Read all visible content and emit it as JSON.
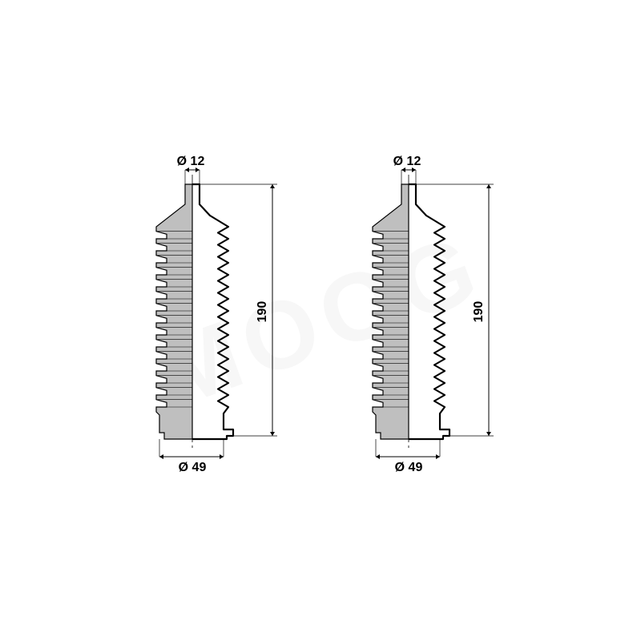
{
  "watermark_text": "MOOG",
  "watermark_color": "rgba(200,200,200,0.12)",
  "units": [
    {
      "top_diameter_label": "Ø 12",
      "bottom_diameter_label": "Ø 49",
      "height_label": "190",
      "stroke_color": "#000000",
      "stroke_width": 1.2,
      "bellows": {
        "top_diameter": 12,
        "bottom_diameter": 49,
        "overall_height": 190,
        "ridge_count": 15,
        "left_fill_color": "#bfbfbf",
        "right_fill_color": "#ffffff"
      }
    },
    {
      "top_diameter_label": "Ø 12",
      "bottom_diameter_label": "Ø 49",
      "height_label": "190",
      "stroke_color": "#000000",
      "stroke_width": 1.2,
      "bellows": {
        "top_diameter": 12,
        "bottom_diameter": 49,
        "overall_height": 190,
        "ridge_count": 15,
        "left_fill_color": "#bfbfbf",
        "right_fill_color": "#ffffff"
      }
    }
  ]
}
